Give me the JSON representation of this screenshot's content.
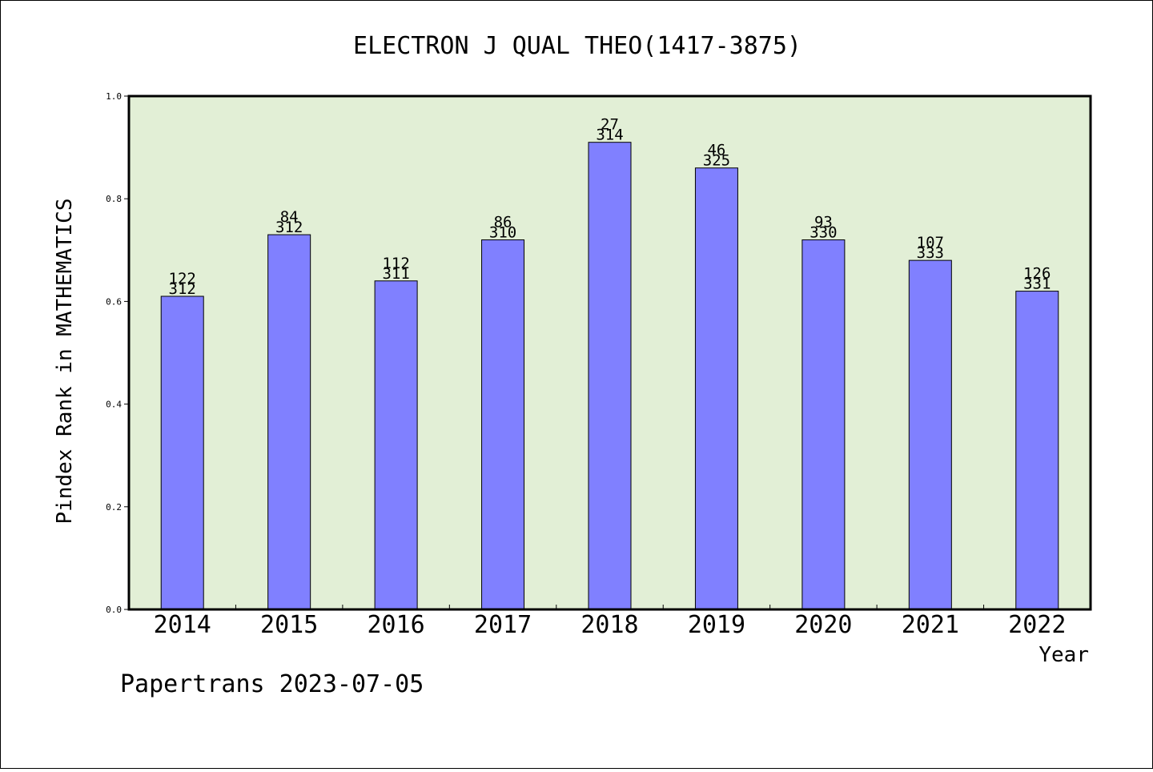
{
  "chart_data": {
    "type": "bar",
    "title": "ELECTRON J QUAL THEO(1417-3875)",
    "xlabel": "Year",
    "ylabel": "Pindex Rank in MATHEMATICS",
    "ylim": [
      0,
      1.0
    ],
    "yticks": [
      "0.0",
      "0.2",
      "0.4",
      "0.6",
      "0.8",
      "1.0"
    ],
    "grid": false,
    "legend": "none",
    "colors": {
      "plot_background": "#e2efd6",
      "bar": "#8080ff",
      "bar_edge": "#000000"
    },
    "categories": [
      "2014",
      "2015",
      "2016",
      "2017",
      "2018",
      "2019",
      "2020",
      "2021",
      "2022"
    ],
    "values": [
      0.61,
      0.73,
      0.64,
      0.72,
      0.91,
      0.86,
      0.72,
      0.68,
      0.62
    ],
    "rank_labels": [
      "122",
      "84",
      "112",
      "86",
      "27",
      "46",
      "93",
      "107",
      "126"
    ],
    "total_labels": [
      "312",
      "312",
      "311",
      "310",
      "314",
      "325",
      "330",
      "333",
      "331"
    ]
  },
  "footer": {
    "text": "Papertrans 2023-07-05"
  }
}
